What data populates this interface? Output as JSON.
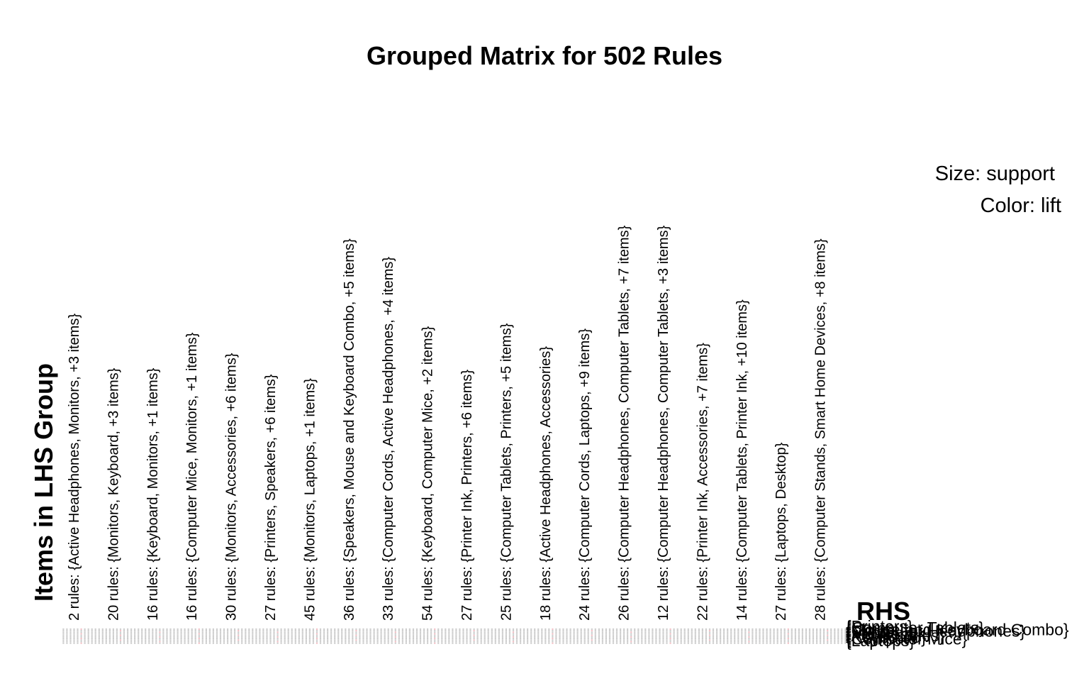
{
  "chart_data": {
    "type": "grouped-matrix",
    "title": "Grouped Matrix for 502 Rules",
    "ylabel": "Items in LHS Group",
    "legend": {
      "size": "Size: support",
      "color": "Color: lift",
      "placement": "top-right"
    },
    "lhs_groups": [
      "2 rules: {Active Headphones, Monitors, +3 items}",
      "20 rules: {Monitors, Keyboard, +3 items}",
      "16 rules: {Keyboard, Monitors, +1 items}",
      "16 rules: {Computer Mice, Monitors, +1 items}",
      "30 rules: {Monitors, Accessories, +6 items}",
      "27 rules: {Printers, Speakers, +6 items}",
      "45 rules: {Monitors, Laptops, +1 items}",
      "36 rules: {Speakers, Mouse and Keyboard Combo, +5 items}",
      "33 rules: {Computer Cords, Active Headphones, +4 items}",
      "54 rules: {Keyboard, Computer Mice, +2 items}",
      "27 rules: {Printer Ink, Printers, +6 items}",
      "25 rules: {Computer Tablets, Printers, +5 items}",
      "18 rules: {Active Headphones, Accessories}",
      "24 rules: {Computer Cords, Laptops, +9 items}",
      "26 rules: {Computer Headphones, Computer Tablets, +7 items}",
      "12 rules: {Computer Headphones, Computer Tablets, +3 items}",
      "22 rules: {Printer Ink, Accessories, +7 items}",
      "14 rules: {Computer Tablets, Printer Ink, +10 items}",
      "27 rules: {Laptops, Desktop}",
      "28 rules: {Computer Stands, Smart Home Devices, +8 items}"
    ],
    "rhs_title": "RHS",
    "rhs_items": [
      "{Printers}",
      "{Computer Tablets}",
      "{Mouse and Keyboard Combo}",
      "{Computer Headphones}",
      "{Printer Ink}",
      "{Monitors}",
      "{Accessories}",
      "{Keyboard}",
      "{Computer Mice}",
      "{Laptops}"
    ],
    "colors": {
      "bubble_dominant": "#c8c8c8",
      "bubble_accent": "#f2b8bf",
      "lift_high": "#ee0000"
    }
  }
}
